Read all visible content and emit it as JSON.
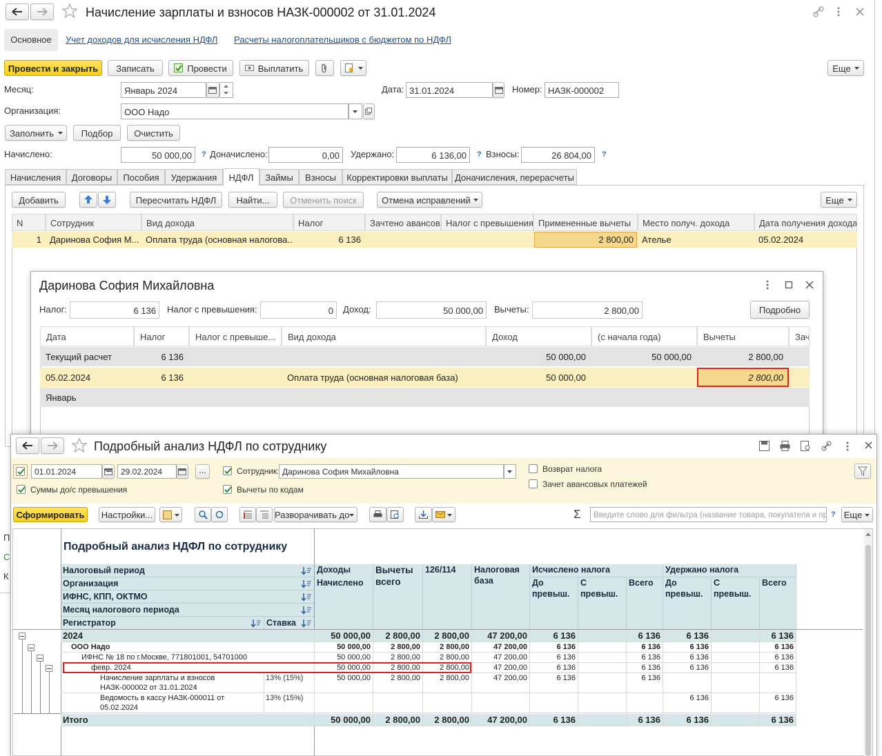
{
  "document": {
    "title": "Начисление зарплаты и взносов НАЗК-000002 от 31.01.2024",
    "nav": [
      "Основное",
      "Учет доходов для исчисления НДФЛ",
      "Расчеты налогоплательщиков с бюджетом по НДФЛ"
    ],
    "toolbar": [
      "Провести и закрыть",
      "Записать",
      "Провести",
      "Выплатить",
      "Еще"
    ],
    "month_label": "Месяц:",
    "month": "Январь 2024",
    "date_label": "Дата:",
    "date": "31.01.2024",
    "number_label": "Номер:",
    "number": "НАЗК-000002",
    "org_label": "Организация:",
    "org": "ООО Надо",
    "fill_buttons": [
      "Заполнить",
      "Подбор",
      "Очистить"
    ],
    "totals": [
      {
        "label": "Начислено:",
        "value": "50 000,00"
      },
      {
        "label": "Доначислено:",
        "value": "0,00"
      },
      {
        "label": "Удержано:",
        "value": "6 136,00"
      },
      {
        "label": "Взносы:",
        "value": "26 804,00"
      }
    ],
    "help": "?",
    "tabs": [
      "Начисления",
      "Договоры",
      "Пособия",
      "Удержания",
      "НДФЛ",
      "Займы",
      "Взносы",
      "Корректировки выплаты",
      "Доначисления, перерасчеты"
    ],
    "active_tab": 4,
    "tab_toolbar": [
      "Добавить",
      "Пересчитать НДФЛ",
      "Найти...",
      "Отменить поиск",
      "Отмена исправлений",
      "Еще"
    ],
    "table": {
      "columns": [
        "N",
        "Сотрудник",
        "Вид дохода",
        "Налог",
        "Зачтено авансов",
        "Налог с превышения",
        "Примененные вычеты",
        "Место получ. дохода",
        "Дата получения дохода"
      ],
      "rows": [
        [
          "1",
          "Даринова София М...",
          "Оплата труда (основная налогова...",
          "6 136",
          null,
          null,
          "2 800,00",
          "Ателье",
          "05.02.2024"
        ]
      ]
    },
    "background_fragments": [
      "П",
      "С",
      "К"
    ]
  },
  "dialog": {
    "title": "Даринова София Михайловна",
    "fields": [
      {
        "label": "Налог:",
        "value": "6 136"
      },
      {
        "label": "Налог с превышения:",
        "value": "0"
      },
      {
        "label": "Доход:",
        "value": "50 000,00"
      },
      {
        "label": "Вычеты:",
        "value": "2 800,00"
      }
    ],
    "details_button": "Подробно",
    "columns": [
      "Дата",
      "Налог",
      "Налог с превыше...",
      "Вид дохода",
      "Доход",
      "(с начала года)",
      "Вычеты",
      "Зач"
    ],
    "rows": [
      [
        "Текущий расчет",
        "6 136",
        null,
        null,
        "50 000,00",
        "50 000,00",
        "2 800,00",
        null
      ],
      [
        "05.02.2024",
        "6 136",
        null,
        "Оплата труда (основная налоговая база)",
        "50 000,00",
        null,
        "2 800,00",
        null
      ],
      [
        "Январь",
        null,
        null,
        null,
        null,
        null,
        null,
        null
      ]
    ]
  },
  "report": {
    "window_title": "Подробный анализ НДФЛ по сотруднику",
    "period_from": "01.01.2024",
    "period_dash": "–",
    "period_to": "29.02.2024",
    "period_more": "...",
    "employee_label": "Сотрудник:",
    "employee": "Даринова София Михайловна",
    "options": [
      {
        "label": "Суммы до/с превышения",
        "checked": true
      },
      {
        "label": "Вычеты по кодам",
        "checked": true
      },
      {
        "label": "Возврат налога",
        "checked": false
      },
      {
        "label": "Зачет авансовых платежей",
        "checked": false
      }
    ],
    "toolbar": [
      "Сформировать",
      "Настройки...",
      "Разворачивать до",
      "Еще"
    ],
    "sum_sign": "Σ",
    "help": "?",
    "filter_placeholder": "Введите слово для фильтра (название товара, покупателя и пр.)",
    "title": "Подробный анализ НДФЛ по сотруднику",
    "groupings": [
      "Налоговый период",
      "Организация",
      "ИФНС, КПП, ОКТМО",
      "Месяц налогового периода",
      "Регистратор"
    ],
    "rate_header": "Ставка",
    "headers": {
      "income": "Доходы",
      "accrued": "Начислено",
      "deductions": "Вычеты всего",
      "code": "126/114",
      "base": "Налоговая база",
      "calculated": "Исчислено налога",
      "withheld": "Удержано налога",
      "sub": [
        "До превыш.",
        "С превыш.",
        "Всего"
      ]
    },
    "rows": [
      {
        "label": "2024",
        "values": [
          "50 000,00",
          "2 800,00",
          "2 800,00",
          "47 200,00",
          "6 136",
          null,
          "6 136",
          "6 136",
          null,
          "6 136"
        ]
      },
      {
        "label": "ООО Надо",
        "values": [
          "50 000,00",
          "2 800,00",
          "2 800,00",
          "47 200,00",
          "6 136",
          null,
          "6 136",
          "6 136",
          null,
          "6 136"
        ]
      },
      {
        "label": "ИФНС № 18 по г.Москве, 771801001, 54701000",
        "values": [
          "50 000,00",
          "2 800,00",
          "2 800,00",
          "47 200,00",
          "6 136",
          null,
          "6 136",
          "6 136",
          null,
          "6 136"
        ]
      },
      {
        "label": "февр. 2024",
        "values": [
          "50 000,00",
          "2 800,00",
          "2 800,00",
          "47 200,00",
          "6 136",
          null,
          "6 136",
          "6 136",
          null,
          "6 136"
        ]
      },
      {
        "label": "Начисление зарплаты и взносов НАЗК-000002 от 31.01.2024",
        "rate": "13% (15%)",
        "values": [
          "50 000,00",
          "2 800,00",
          "2 800,00",
          "47 200,00",
          "6 136",
          null,
          "6 136",
          null,
          null,
          null
        ]
      },
      {
        "label": "Ведомость в кассу НАЗК-000011 от 05.02.2024",
        "rate": "13% (15%)",
        "values": [
          null,
          null,
          null,
          null,
          null,
          null,
          null,
          "6 136",
          null,
          "6 136"
        ]
      }
    ],
    "total": {
      "label": "Итого",
      "values": [
        "50 000,00",
        "2 800,00",
        "2 800,00",
        "47 200,00",
        "6 136",
        null,
        "6 136",
        "6 136",
        null,
        "6 136"
      ]
    }
  }
}
